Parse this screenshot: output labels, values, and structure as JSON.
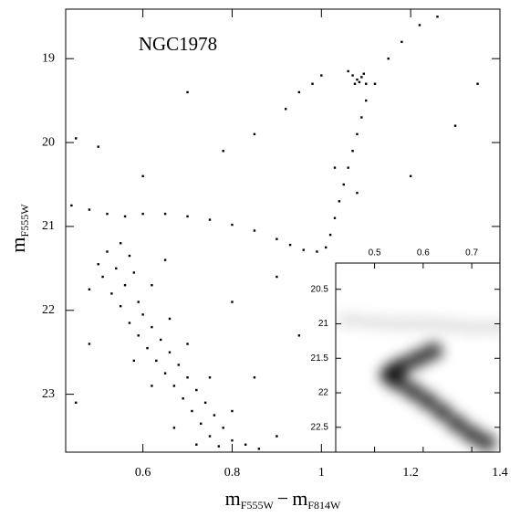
{
  "chart_data": [
    {
      "type": "scatter",
      "annotation": "NGC1978",
      "xlabel": [
        "m",
        "F555W",
        "−",
        "m",
        "F814W"
      ],
      "ylabel": [
        "m",
        "F555W"
      ],
      "xlim": [
        0.427,
        1.4
      ],
      "ylim": [
        23.69,
        18.41
      ],
      "xticks": [
        0.6,
        0.8,
        1,
        1.2,
        1.4
      ],
      "yticks": [
        19,
        20,
        21,
        22,
        23
      ],
      "color": "#000000",
      "x": [
        0.52,
        0.55,
        0.57,
        0.54,
        0.58,
        0.51,
        0.56,
        0.53,
        0.59,
        0.55,
        0.6,
        0.57,
        0.62,
        0.59,
        0.64,
        0.61,
        0.66,
        0.63,
        0.68,
        0.65,
        0.7,
        0.67,
        0.72,
        0.69,
        0.74,
        0.71,
        0.76,
        0.73,
        0.78,
        0.75,
        0.8,
        0.77,
        0.83,
        0.86,
        0.5,
        0.62,
        0.48,
        0.66,
        0.58,
        0.7,
        0.62,
        0.75,
        0.67,
        0.8,
        0.72,
        0.9,
        0.44,
        0.48,
        0.52,
        0.56,
        0.6,
        0.65,
        0.7,
        0.75,
        0.8,
        0.85,
        0.9,
        0.93,
        0.96,
        0.99,
        1.01,
        1.02,
        1.03,
        1.04,
        1.05,
        1.06,
        1.07,
        1.08,
        1.09,
        1.1,
        1.03,
        1.08,
        1.12,
        1.15,
        1.18,
        1.22,
        1.26,
        1.07,
        1.08,
        1.09,
        1.085,
        1.075,
        1.095,
        1.06,
        1.1,
        0.92,
        0.95,
        0.98,
        1.0,
        0.85,
        0.78,
        0.45,
        0.5,
        0.7,
        0.9,
        1.2,
        1.3,
        0.48,
        0.45,
        0.95,
        1.05,
        0.8,
        0.65,
        1.35,
        0.6,
        0.85,
        1.1
      ],
      "y": [
        21.3,
        21.2,
        21.35,
        21.5,
        21.55,
        21.6,
        21.7,
        21.8,
        21.9,
        21.95,
        22.05,
        22.15,
        22.2,
        22.3,
        22.35,
        22.45,
        22.5,
        22.6,
        22.65,
        22.75,
        22.8,
        22.9,
        22.95,
        23.05,
        23.1,
        23.2,
        23.25,
        23.35,
        23.4,
        23.5,
        23.55,
        23.62,
        23.6,
        23.65,
        21.45,
        21.7,
        21.75,
        22.1,
        22.6,
        22.4,
        22.9,
        22.8,
        23.4,
        23.2,
        23.6,
        23.5,
        20.75,
        20.8,
        20.85,
        20.88,
        20.85,
        20.85,
        20.88,
        20.92,
        20.98,
        21.05,
        21.15,
        21.22,
        21.28,
        21.3,
        21.25,
        21.1,
        20.9,
        20.7,
        20.5,
        20.3,
        20.1,
        19.9,
        19.7,
        19.5,
        20.3,
        20.6,
        19.3,
        19.0,
        18.8,
        18.6,
        18.5,
        19.2,
        19.25,
        19.22,
        19.28,
        19.3,
        19.18,
        19.15,
        19.3,
        19.6,
        19.4,
        19.3,
        19.2,
        19.9,
        20.1,
        19.95,
        20.05,
        19.4,
        21.6,
        20.4,
        19.8,
        22.4,
        23.1,
        22.3,
        21.8,
        21.9,
        21.4,
        19.3,
        20.4,
        22.8,
        22.6
      ]
    },
    {
      "type": "density",
      "xlim": [
        0.42,
        0.758
      ],
      "ylim": [
        22.86,
        20.12
      ],
      "xticks": [
        0.5,
        0.6,
        0.7
      ],
      "yticks": [
        20.5,
        21,
        21.5,
        22,
        22.5
      ],
      "color": "#000000",
      "x": [
        0.62,
        0.59,
        0.56,
        0.54,
        0.53,
        0.55,
        0.58,
        0.61,
        0.64,
        0.67,
        0.7,
        0.73,
        0.45,
        0.5,
        0.55,
        0.6,
        0.65,
        0.7,
        0.75
      ],
      "y": [
        21.4,
        21.5,
        21.6,
        21.68,
        21.75,
        21.85,
        21.98,
        22.12,
        22.28,
        22.45,
        22.6,
        22.72,
        20.95,
        20.98,
        21.0,
        21.0,
        21.02,
        21.05,
        21.05
      ]
    }
  ]
}
